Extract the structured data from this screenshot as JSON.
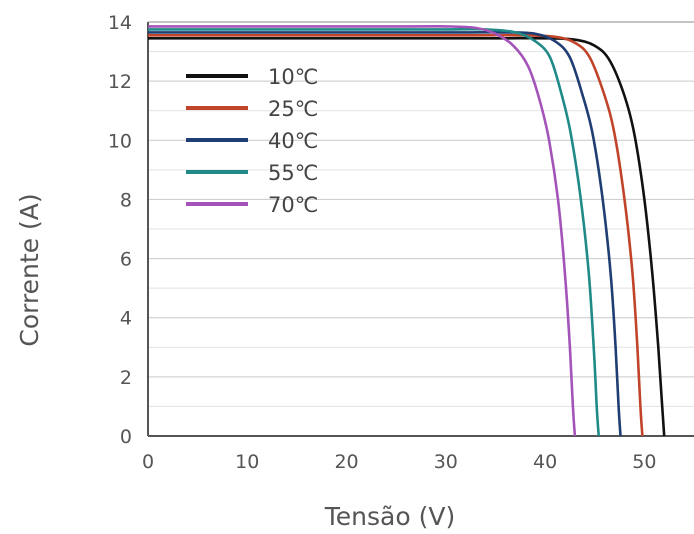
{
  "chart_data": {
    "type": "line",
    "title": "",
    "xlabel": "Tensão (V)",
    "ylabel": "Corrente (A)",
    "xlim": [
      0,
      55
    ],
    "ylim": [
      0,
      14
    ],
    "x_ticks": [
      "0",
      "10",
      "20",
      "30",
      "40",
      "50"
    ],
    "y_ticks": [
      "0",
      "2",
      "4",
      "6",
      "8",
      "10",
      "12",
      "14"
    ],
    "grid": "horizontal",
    "legend_position": "top-left",
    "series": [
      {
        "name": "10℃",
        "color": "#111111",
        "x": [
          0,
          25,
          35,
          40,
          43,
          45,
          46.5,
          48,
          49,
          50,
          50.8,
          51.4,
          51.8,
          52
        ],
        "y": [
          13.45,
          13.45,
          13.45,
          13.45,
          13.4,
          13.2,
          12.7,
          11.5,
          10.2,
          8.0,
          5.5,
          3.0,
          1.0,
          0
        ]
      },
      {
        "name": "25℃",
        "color": "#c0442a",
        "x": [
          0,
          25,
          33,
          38,
          41,
          43,
          44.5,
          46,
          47,
          48,
          48.8,
          49.3,
          49.6,
          49.8
        ],
        "y": [
          13.55,
          13.55,
          13.55,
          13.55,
          13.5,
          13.3,
          12.8,
          11.5,
          10.2,
          8.0,
          5.5,
          3.0,
          1.0,
          0
        ]
      },
      {
        "name": "40℃",
        "color": "#1f3e73",
        "x": [
          0,
          25,
          32,
          36,
          39,
          41,
          42.5,
          43.8,
          44.8,
          45.8,
          46.6,
          47.1,
          47.4,
          47.6
        ],
        "y": [
          13.65,
          13.65,
          13.65,
          13.65,
          13.6,
          13.35,
          12.8,
          11.5,
          10.2,
          8.0,
          5.5,
          3.0,
          1.0,
          0
        ]
      },
      {
        "name": "55℃",
        "color": "#1f8a88",
        "x": [
          0,
          25,
          30,
          34,
          37,
          39,
          40.5,
          41.7,
          42.6,
          43.6,
          44.4,
          44.9,
          45.2,
          45.4
        ],
        "y": [
          13.75,
          13.75,
          13.75,
          13.75,
          13.65,
          13.35,
          12.8,
          11.5,
          10.2,
          8.0,
          5.5,
          3.0,
          1.0,
          0
        ]
      },
      {
        "name": "70℃",
        "color": "#a454b8",
        "x": [
          0,
          25,
          30,
          33,
          35,
          36.8,
          38.3,
          39.5,
          40.4,
          41.3,
          42.0,
          42.5,
          42.8,
          43.0
        ],
        "y": [
          13.85,
          13.85,
          13.85,
          13.8,
          13.6,
          13.2,
          12.5,
          11.3,
          10.0,
          8.0,
          5.5,
          3.0,
          1.0,
          0
        ]
      }
    ]
  }
}
